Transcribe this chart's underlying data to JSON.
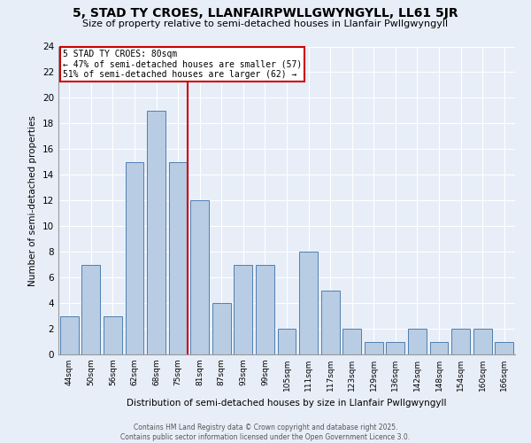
{
  "title": "5, STAD TY CROES, LLANFAIRPWLLGWYNGYLL, LL61 5JR",
  "subtitle": "Size of property relative to semi-detached houses in Llanfair Pwllgwyngyll",
  "xlabel": "Distribution of semi-detached houses by size in Llanfair Pwllgwyngyll",
  "ylabel": "Number of semi-detached properties",
  "categories": [
    "44sqm",
    "50sqm",
    "56sqm",
    "62sqm",
    "68sqm",
    "75sqm",
    "81sqm",
    "87sqm",
    "93sqm",
    "99sqm",
    "105sqm",
    "111sqm",
    "117sqm",
    "123sqm",
    "129sqm",
    "136sqm",
    "142sqm",
    "148sqm",
    "154sqm",
    "160sqm",
    "166sqm"
  ],
  "values": [
    3,
    7,
    3,
    15,
    19,
    15,
    12,
    4,
    7,
    7,
    2,
    8,
    5,
    2,
    1,
    1,
    2,
    1,
    2,
    2,
    1
  ],
  "bar_color": "#b8cce4",
  "bar_edge_color": "#5080b0",
  "subject_bar_index": 5,
  "subject_label": "5 STAD TY CROES: 80sqm",
  "annotation_line1": "← 47% of semi-detached houses are smaller (57)",
  "annotation_line2": "51% of semi-detached houses are larger (62) →",
  "annotation_box_facecolor": "#ffffff",
  "annotation_box_edgecolor": "#cc0000",
  "vline_color": "#cc0000",
  "ylim": [
    0,
    24
  ],
  "yticks": [
    0,
    2,
    4,
    6,
    8,
    10,
    12,
    14,
    16,
    18,
    20,
    22,
    24
  ],
  "footer": "Contains HM Land Registry data © Crown copyright and database right 2025.\nContains public sector information licensed under the Open Government Licence 3.0.",
  "bg_color": "#e8eef8",
  "plot_bg_color": "#e8eef8",
  "title_fontsize": 10,
  "subtitle_fontsize": 8,
  "axis_label_fontsize": 7.5,
  "tick_fontsize": 8
}
